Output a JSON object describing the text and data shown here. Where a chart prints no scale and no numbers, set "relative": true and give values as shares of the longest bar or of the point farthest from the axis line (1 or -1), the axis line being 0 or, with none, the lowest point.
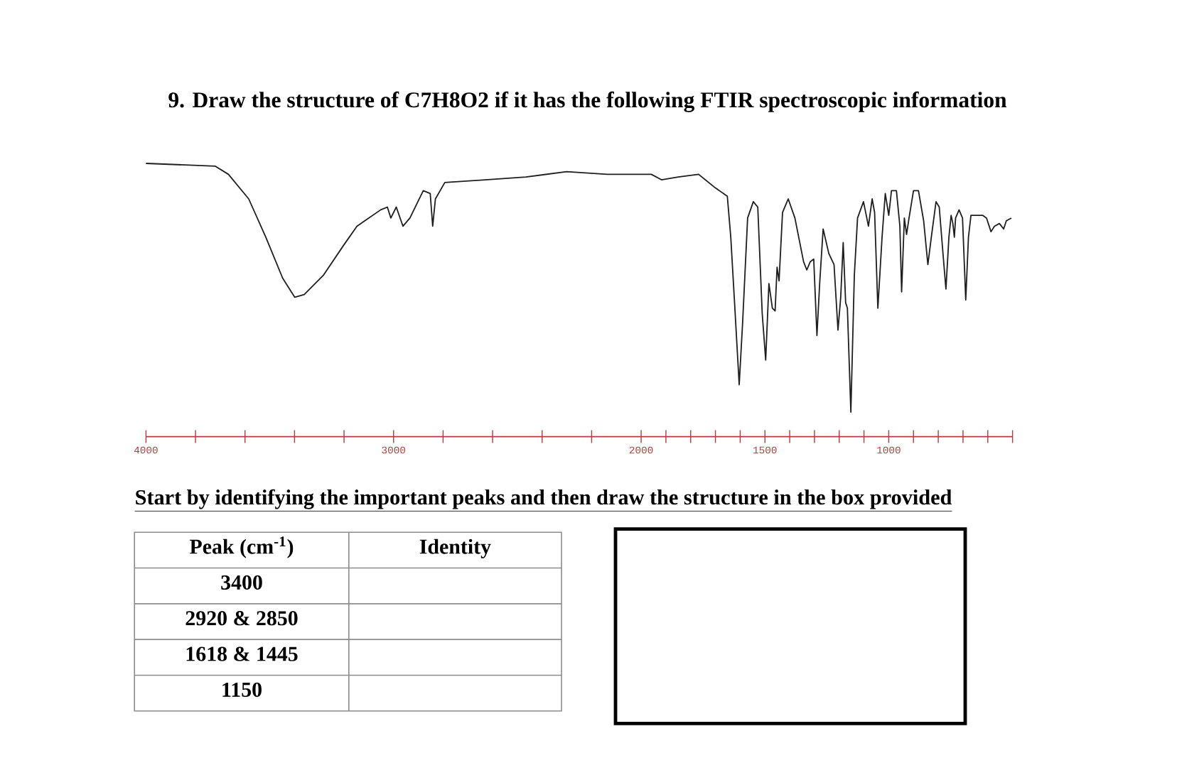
{
  "chart_data": {
    "type": "line",
    "title": "9. Draw the structure of C7H8O2 if it has the following FTIR spectroscopic information",
    "relative": true,
    "xlim": [
      4000,
      500
    ],
    "xticks": [
      4000,
      {
        "value": 3800,
        "label": null
      },
      {
        "value": 3600,
        "label": null
      },
      {
        "value": 3400,
        "label": null
      },
      {
        "value": 3200,
        "label": null
      },
      3000,
      {
        "value": 2800,
        "label": null
      },
      {
        "value": 2600,
        "label": null
      },
      {
        "value": 2400,
        "label": null
      },
      {
        "value": 2200,
        "label": null
      },
      2000,
      {
        "value": 1900,
        "label": null
      },
      {
        "value": 1800,
        "label": null
      },
      {
        "value": 1700,
        "label": null
      },
      {
        "value": 1600,
        "label": null
      },
      1500,
      {
        "value": 1400,
        "label": null
      },
      {
        "value": 1300,
        "label": null
      },
      {
        "value": 1200,
        "label": null
      },
      {
        "value": 1100,
        "label": null
      },
      1000,
      {
        "value": 900,
        "label": null
      },
      {
        "value": 800,
        "label": null
      },
      {
        "value": 700,
        "label": null
      },
      {
        "value": 600,
        "label": null
      },
      {
        "value": 500,
        "label": null
      }
    ],
    "x": [
      4000,
      3721,
      3667,
      3585,
      3516,
      3448,
      3399,
      3361,
      3284,
      3202,
      3148,
      3052,
      3025,
      3011,
      2989,
      2962,
      2934,
      2880,
      2852,
      2842,
      2831,
      2793,
      2629,
      2465,
      2301,
      2137,
      1959,
      1918,
      1850,
      1768,
      1700,
      1652,
      1638,
      1624,
      1604,
      1590,
      1570,
      1547,
      1529,
      1511,
      1497,
      1484,
      1470,
      1459,
      1451,
      1443,
      1429,
      1406,
      1379,
      1344,
      1331,
      1317,
      1303,
      1290,
      1279,
      1265,
      1242,
      1221,
      1205,
      1194,
      1184,
      1174,
      1167,
      1153,
      1139,
      1126,
      1102,
      1082,
      1067,
      1057,
      1044,
      1027,
      1014,
      1000,
      989,
      969,
      955,
      948,
      937,
      928,
      918,
      900,
      880,
      859,
      842,
      828,
      809,
      796,
      780,
      769,
      757,
      748,
      741,
      735,
      730,
      716,
      702,
      689,
      678,
      668,
      621,
      605,
      587,
      573,
      553,
      536,
      525,
      505
    ],
    "values": [
      1.0,
      0.99,
      0.96,
      0.87,
      0.73,
      0.58,
      0.51,
      0.52,
      0.59,
      0.7,
      0.77,
      0.83,
      0.84,
      0.8,
      0.84,
      0.77,
      0.8,
      0.9,
      0.89,
      0.77,
      0.87,
      0.93,
      0.94,
      0.95,
      0.97,
      0.96,
      0.96,
      0.94,
      0.95,
      0.96,
      0.91,
      0.88,
      0.73,
      0.51,
      0.19,
      0.42,
      0.8,
      0.86,
      0.84,
      0.45,
      0.28,
      0.56,
      0.47,
      0.46,
      0.62,
      0.57,
      0.82,
      0.87,
      0.8,
      0.64,
      0.61,
      0.64,
      0.65,
      0.37,
      0.56,
      0.76,
      0.67,
      0.63,
      0.39,
      0.51,
      0.71,
      0.49,
      0.47,
      0.09,
      0.59,
      0.8,
      0.86,
      0.77,
      0.87,
      0.82,
      0.47,
      0.73,
      0.89,
      0.81,
      0.9,
      0.9,
      0.77,
      0.53,
      0.8,
      0.74,
      0.8,
      0.9,
      0.9,
      0.79,
      0.63,
      0.73,
      0.86,
      0.84,
      0.66,
      0.54,
      0.73,
      0.81,
      0.78,
      0.73,
      0.8,
      0.83,
      0.8,
      0.5,
      0.73,
      0.81,
      0.81,
      0.8,
      0.75,
      0.77,
      0.78,
      0.76,
      0.79,
      0.8
    ],
    "color": "#1e1e1e",
    "marker": "none",
    "line_style": "solid",
    "annotations": [
      "Start by identifying the important peaks and then draw the structure in the box provided",
      "Peak (cm$^{-1}$)",
      "Identity",
      "3400",
      "2920 & 2850",
      "1618 & 1445",
      "1150"
    ]
  }
}
